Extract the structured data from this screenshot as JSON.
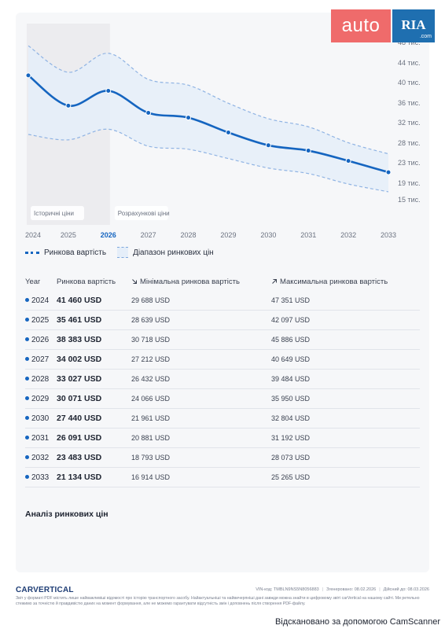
{
  "header": {
    "logo_auto": "auto",
    "logo_ria": "RIA",
    "logo_ria_sub": ".com"
  },
  "chart_data": {
    "type": "line",
    "x": [
      2024,
      2025,
      2026,
      2027,
      2028,
      2029,
      2030,
      2031,
      2032,
      2033
    ],
    "xticks": [
      "2024",
      "2025",
      "2026",
      "2027",
      "2028",
      "2029",
      "2030",
      "2031",
      "2032",
      "2033"
    ],
    "current_year": "2026",
    "yticks": [
      {
        "value": 48000,
        "label": "48 тис."
      },
      {
        "value": 44000,
        "label": "44 тис."
      },
      {
        "value": 40000,
        "label": "40 тис."
      },
      {
        "value": 36000,
        "label": "36 тис."
      },
      {
        "value": 32000,
        "label": "32 тис."
      },
      {
        "value": 28000,
        "label": "28 тис."
      },
      {
        "value": 23000,
        "label": "23 тис."
      },
      {
        "value": 19000,
        "label": "19 тис."
      },
      {
        "value": 15000,
        "label": "15 тис."
      }
    ],
    "series": [
      {
        "name": "Ринкова вартість",
        "values": [
          41460,
          35461,
          38383,
          34002,
          33027,
          30071,
          27440,
          26091,
          23483,
          21134
        ],
        "color": "#1565c0"
      }
    ],
    "band": {
      "name": "Діапазон ринкових цін",
      "min": [
        29688,
        28639,
        30718,
        27212,
        26432,
        24066,
        21961,
        20881,
        18793,
        16914
      ],
      "max": [
        47351,
        42097,
        45886,
        40649,
        39484,
        35950,
        32804,
        31192,
        28073,
        25265
      ],
      "color": "#e5eef9"
    },
    "region_labels": {
      "historical": "Історичні ціни",
      "forecast": "Розрахункові ціни"
    },
    "legend_position": "bottom-left"
  },
  "legend": {
    "market": "Ринкова вартість",
    "range": "Діапазон ринкових цін"
  },
  "table": {
    "headers": {
      "year": "Year",
      "market": "Ринкова вартість",
      "min": "Мінімальна ринкова вартість",
      "max": "Максимальна ринкова вартість",
      "min_icon": "arrow-down-right-icon",
      "max_icon": "arrow-up-right-icon"
    },
    "rows": [
      {
        "year": "2024",
        "market": "41 460 USD",
        "min": "29 688 USD",
        "max": "47 351 USD"
      },
      {
        "year": "2025",
        "market": "35 461 USD",
        "min": "28 639 USD",
        "max": "42 097 USD"
      },
      {
        "year": "2026",
        "market": "38 383 USD",
        "min": "30 718 USD",
        "max": "45 886 USD"
      },
      {
        "year": "2027",
        "market": "34 002 USD",
        "min": "27 212 USD",
        "max": "40 649 USD"
      },
      {
        "year": "2028",
        "market": "33 027 USD",
        "min": "26 432 USD",
        "max": "39 484 USD"
      },
      {
        "year": "2029",
        "market": "30 071 USD",
        "min": "24 066 USD",
        "max": "35 950 USD"
      },
      {
        "year": "2030",
        "market": "27 440 USD",
        "min": "21 961 USD",
        "max": "32 804 USD"
      },
      {
        "year": "2031",
        "market": "26 091 USD",
        "min": "20 881 USD",
        "max": "31 192 USD"
      },
      {
        "year": "2032",
        "market": "23 483 USD",
        "min": "18 793 USD",
        "max": "28 073 USD"
      },
      {
        "year": "2033",
        "market": "21 134 USD",
        "min": "16 914 USD",
        "max": "25 265 USD"
      }
    ]
  },
  "analysis_title": "Аналіз ринкових цін",
  "footer": {
    "logo": "CARVERTICAL",
    "vin": "VIN-код: TMBLN9NS5N8056883",
    "generated": "Згенеровано: 08.02.2026",
    "valid": "Дійсний до: 08.03.2026",
    "note": "Звіт у форматі PDF містить лише найважливіші відомості про історію транспортного засобу. Найактуальніші та найвичерпніші дані завжди можна знайти в цифровому звіті carVertical на нашому сайті. Ми ретельно стежимо за точністю й правдивістю даних на момент формування, але не можемо гарантувати відсутність змін і доповнень після створення PDF-файлу."
  },
  "scanner_text": "Відскановано за допомогою CamScanner"
}
